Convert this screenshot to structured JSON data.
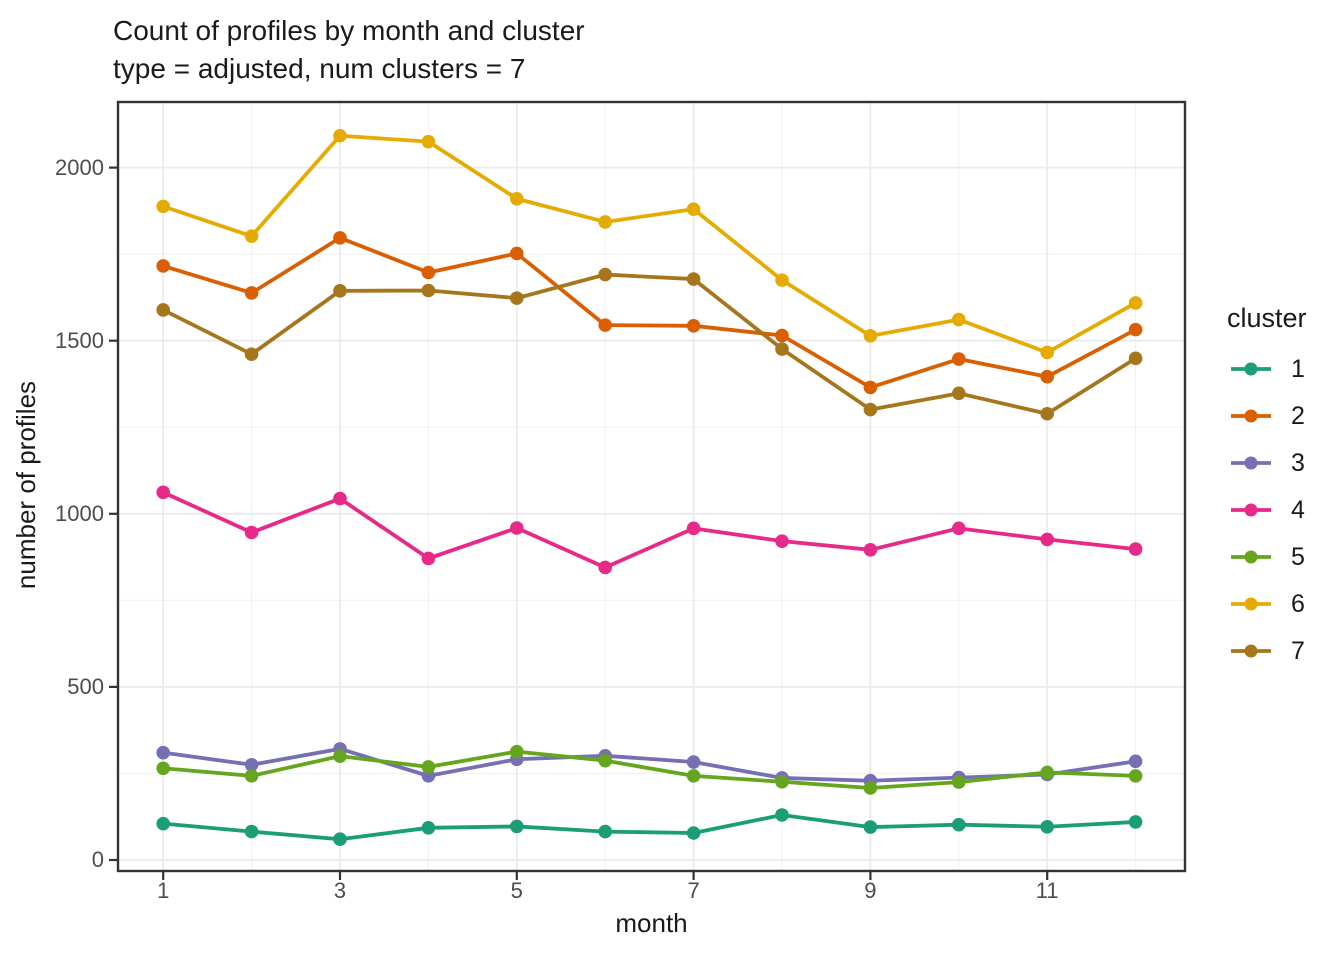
{
  "chart_data": {
    "type": "line",
    "title": "Count of profiles by month and cluster",
    "subtitle": "type = adjusted, num clusters = 7",
    "xlabel": "month",
    "ylabel": "number of profiles",
    "x": [
      1,
      2,
      3,
      4,
      5,
      6,
      7,
      8,
      9,
      10,
      11,
      12
    ],
    "x_ticks": [
      1,
      3,
      5,
      7,
      9,
      11
    ],
    "x_minor_ticks": [
      2,
      4,
      6,
      8,
      10,
      12
    ],
    "y_ticks": [
      0,
      500,
      1000,
      1500,
      2000
    ],
    "y_minor_ticks": [
      250,
      750,
      1250,
      1750
    ],
    "ylim": [
      0,
      2190
    ],
    "grid": true,
    "legend": {
      "title": "cluster",
      "position": "right"
    },
    "series": [
      {
        "name": "1",
        "color": "#1B9E77",
        "values": [
          105,
          82,
          60,
          93,
          97,
          82,
          78,
          130,
          95,
          102,
          96,
          110
        ]
      },
      {
        "name": "2",
        "color": "#D95F02",
        "values": [
          1716,
          1638,
          1797,
          1697,
          1752,
          1545,
          1543,
          1515,
          1365,
          1447,
          1396,
          1532
        ]
      },
      {
        "name": "3",
        "color": "#7570B3",
        "values": [
          310,
          275,
          321,
          243,
          291,
          301,
          283,
          237,
          229,
          238,
          247,
          285
        ]
      },
      {
        "name": "4",
        "color": "#E7298A",
        "values": [
          1062,
          946,
          1044,
          871,
          959,
          845,
          958,
          921,
          896,
          958,
          926,
          898
        ]
      },
      {
        "name": "5",
        "color": "#66A61E",
        "values": [
          265,
          243,
          300,
          269,
          313,
          287,
          243,
          226,
          208,
          225,
          253,
          243
        ]
      },
      {
        "name": "6",
        "color": "#E6AB02",
        "values": [
          1888,
          1802,
          2092,
          2075,
          1910,
          1843,
          1880,
          1675,
          1514,
          1561,
          1466,
          1609
        ]
      },
      {
        "name": "7",
        "color": "#A6761D",
        "values": [
          1589,
          1461,
          1644,
          1645,
          1623,
          1691,
          1678,
          1476,
          1301,
          1348,
          1289,
          1449
        ]
      }
    ]
  },
  "colors": {
    "background": "#FFFFFF",
    "panel_border": "#333333",
    "grid_major": "#EBEBEB",
    "grid_minor": "#F2F2F2",
    "tick_mark": "#333333",
    "tick_label": "#4D4D4D",
    "text": "#1A1A1A"
  }
}
